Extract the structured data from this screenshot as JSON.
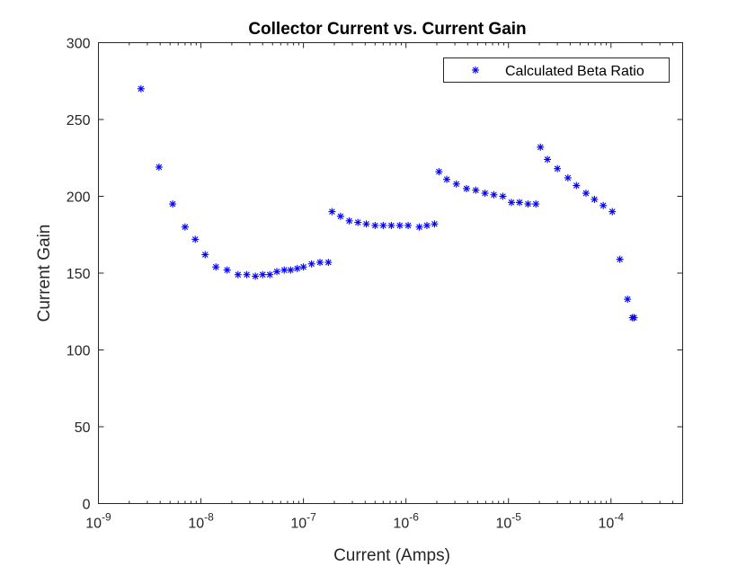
{
  "chart_data": {
    "type": "scatter",
    "title": "Collector Current vs. Current Gain",
    "xlabel": "Current (Amps)",
    "ylabel": "Current Gain",
    "xscale": "log",
    "xlim": [
      1e-09,
      0.0005
    ],
    "ylim": [
      0,
      300
    ],
    "xticks": [
      {
        "value": 1e-09,
        "base": "10",
        "exp": "-9"
      },
      {
        "value": 1e-08,
        "base": "10",
        "exp": "-8"
      },
      {
        "value": 1e-07,
        "base": "10",
        "exp": "-7"
      },
      {
        "value": 1e-06,
        "base": "10",
        "exp": "-6"
      },
      {
        "value": 1e-05,
        "base": "10",
        "exp": "-5"
      },
      {
        "value": 0.0001,
        "base": "10",
        "exp": "-4"
      }
    ],
    "yticks": [
      {
        "value": 0,
        "label": "0"
      },
      {
        "value": 50,
        "label": "50"
      },
      {
        "value": 100,
        "label": "100"
      },
      {
        "value": 150,
        "label": "150"
      },
      {
        "value": 200,
        "label": "200"
      },
      {
        "value": 250,
        "label": "250"
      },
      {
        "value": 300,
        "label": "300"
      }
    ],
    "grid": false,
    "legend": {
      "position": "top-right",
      "entries": [
        "Calculated Beta Ratio"
      ]
    },
    "series": [
      {
        "name": "Calculated Beta Ratio",
        "color": "#0000ff",
        "marker": "asterisk",
        "points": [
          [
            2.6e-09,
            270
          ],
          [
            3.9e-09,
            219
          ],
          [
            5.3e-09,
            195
          ],
          [
            7e-09,
            180
          ],
          [
            8.8e-09,
            172
          ],
          [
            1.1e-08,
            162
          ],
          [
            1.4e-08,
            154
          ],
          [
            1.8e-08,
            152
          ],
          [
            2.3e-08,
            149
          ],
          [
            2.8e-08,
            149
          ],
          [
            3.4e-08,
            148
          ],
          [
            4e-08,
            149
          ],
          [
            4.7e-08,
            149
          ],
          [
            5.5e-08,
            151
          ],
          [
            6.5e-08,
            152
          ],
          [
            7.5e-08,
            152
          ],
          [
            8.7e-08,
            153
          ],
          [
            1e-07,
            154
          ],
          [
            1.2e-07,
            156
          ],
          [
            1.45e-07,
            157
          ],
          [
            1.75e-07,
            157
          ],
          [
            1.9e-07,
            190
          ],
          [
            2.3e-07,
            187
          ],
          [
            2.8e-07,
            184
          ],
          [
            3.4e-07,
            183
          ],
          [
            4.1e-07,
            182
          ],
          [
            5e-07,
            181
          ],
          [
            6e-07,
            181
          ],
          [
            7.2e-07,
            181
          ],
          [
            8.7e-07,
            181
          ],
          [
            1.05e-06,
            181
          ],
          [
            1.35e-06,
            180
          ],
          [
            1.6e-06,
            181
          ],
          [
            1.9e-06,
            182
          ],
          [
            2.1e-06,
            216
          ],
          [
            2.5e-06,
            211
          ],
          [
            3.1e-06,
            208
          ],
          [
            3.9e-06,
            205
          ],
          [
            4.8e-06,
            204
          ],
          [
            5.9e-06,
            202
          ],
          [
            7.2e-06,
            201
          ],
          [
            8.8e-06,
            200
          ],
          [
            1.07e-05,
            196
          ],
          [
            1.28e-05,
            196
          ],
          [
            1.55e-05,
            195
          ],
          [
            1.85e-05,
            195
          ],
          [
            2.05e-05,
            232
          ],
          [
            2.4e-05,
            224
          ],
          [
            3e-05,
            218
          ],
          [
            3.8e-05,
            212
          ],
          [
            4.6e-05,
            207
          ],
          [
            5.7e-05,
            202
          ],
          [
            6.9e-05,
            198
          ],
          [
            8.4e-05,
            194
          ],
          [
            0.000103,
            190
          ],
          [
            0.000122,
            159
          ],
          [
            0.000145,
            133
          ],
          [
            0.000162,
            121
          ],
          [
            0.000168,
            121
          ]
        ]
      }
    ]
  }
}
